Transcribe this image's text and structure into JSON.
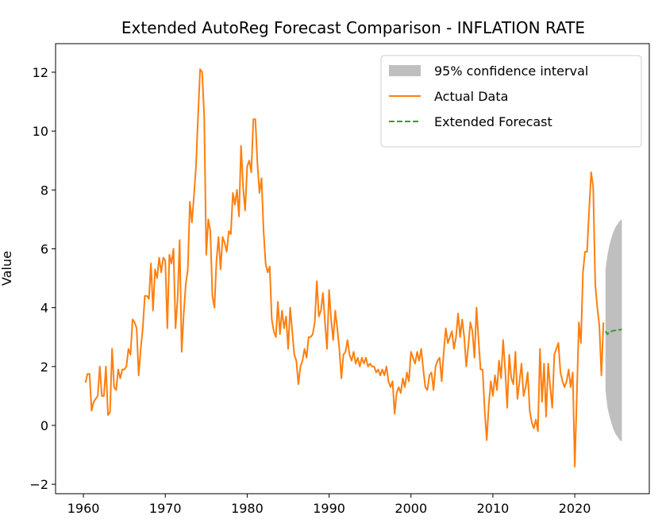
{
  "chart_data": {
    "type": "line",
    "title": "Extended AutoReg Forecast Comparison - INFLATION RATE",
    "ylabel": "Value",
    "xlim": [
      1956.6,
      2029.1
    ],
    "ylim": [
      -2.32,
      12.97
    ],
    "xticks": [
      1960,
      1970,
      1980,
      1990,
      2000,
      2010,
      2020
    ],
    "yticks": [
      {
        "value": -2,
        "label": "−2"
      },
      0,
      2,
      4,
      6,
      8,
      10,
      12
    ],
    "legend": "upper right",
    "confidence_interval": {
      "name": "95% confidence interval",
      "color": "#a9a9a9",
      "x": [
        2023.75,
        2024,
        2024.25,
        2024.5,
        2024.75,
        2025,
        2025.25,
        2025.5,
        2025.75
      ],
      "lower": [
        1.2,
        0.6,
        0.3,
        0.05,
        -0.15,
        -0.3,
        -0.4,
        -0.5,
        -0.55
      ],
      "upper": [
        5.3,
        5.8,
        6.15,
        6.4,
        6.6,
        6.75,
        6.85,
        6.95,
        7.0
      ]
    },
    "series": [
      {
        "name": "Actual Data",
        "color": "#ff7f0e",
        "linestyle": "solid",
        "x": [
          1960.25,
          1960.5,
          1960.75,
          1961,
          1961.25,
          1961.5,
          1961.75,
          1962,
          1962.25,
          1962.5,
          1962.75,
          1963,
          1963.25,
          1963.5,
          1963.75,
          1964,
          1964.25,
          1964.5,
          1964.75,
          1965,
          1965.25,
          1965.5,
          1965.75,
          1966,
          1966.25,
          1966.5,
          1966.75,
          1967,
          1967.25,
          1967.5,
          1967.75,
          1968,
          1968.25,
          1968.5,
          1968.75,
          1969,
          1969.25,
          1969.5,
          1969.75,
          1970,
          1970.25,
          1970.5,
          1970.75,
          1971,
          1971.25,
          1971.5,
          1971.75,
          1972,
          1972.25,
          1972.5,
          1972.75,
          1973,
          1973.25,
          1973.5,
          1973.75,
          1974,
          1974.25,
          1974.5,
          1974.75,
          1975,
          1975.25,
          1975.5,
          1975.75,
          1976,
          1976.25,
          1976.5,
          1976.75,
          1977,
          1977.25,
          1977.5,
          1977.75,
          1978,
          1978.25,
          1978.5,
          1978.75,
          1979,
          1979.25,
          1979.5,
          1979.75,
          1980,
          1980.25,
          1980.5,
          1980.75,
          1981,
          1981.25,
          1981.5,
          1981.75,
          1982,
          1982.25,
          1982.5,
          1982.75,
          1983,
          1983.25,
          1983.5,
          1983.75,
          1984,
          1984.25,
          1984.5,
          1984.75,
          1985,
          1985.25,
          1985.5,
          1985.75,
          1986,
          1986.25,
          1986.5,
          1986.75,
          1987,
          1987.25,
          1987.5,
          1987.75,
          1988,
          1988.25,
          1988.5,
          1988.75,
          1989,
          1989.25,
          1989.5,
          1989.75,
          1990,
          1990.25,
          1990.5,
          1990.75,
          1991,
          1991.25,
          1991.5,
          1991.75,
          1992,
          1992.25,
          1992.5,
          1992.75,
          1993,
          1993.25,
          1993.5,
          1993.75,
          1994,
          1994.25,
          1994.5,
          1994.75,
          1995,
          1995.25,
          1995.5,
          1995.75,
          1996,
          1996.25,
          1996.5,
          1996.75,
          1997,
          1997.25,
          1997.5,
          1997.75,
          1998,
          1998.25,
          1998.5,
          1998.75,
          1999,
          1999.25,
          1999.5,
          1999.75,
          2000,
          2000.25,
          2000.5,
          2000.75,
          2001,
          2001.25,
          2001.5,
          2001.75,
          2002,
          2002.25,
          2002.5,
          2002.75,
          2003,
          2003.25,
          2003.5,
          2003.75,
          2004,
          2004.25,
          2004.5,
          2004.75,
          2005,
          2005.25,
          2005.5,
          2005.75,
          2006,
          2006.25,
          2006.5,
          2006.75,
          2007,
          2007.25,
          2007.5,
          2007.75,
          2008,
          2008.25,
          2008.5,
          2008.75,
          2009,
          2009.25,
          2009.5,
          2009.75,
          2010,
          2010.25,
          2010.5,
          2010.75,
          2011,
          2011.25,
          2011.5,
          2011.75,
          2012,
          2012.25,
          2012.5,
          2012.75,
          2013,
          2013.25,
          2013.5,
          2013.75,
          2014,
          2014.25,
          2014.5,
          2014.75,
          2015,
          2015.25,
          2015.5,
          2015.75,
          2016,
          2016.25,
          2016.5,
          2016.75,
          2017,
          2017.25,
          2017.5,
          2017.75,
          2018,
          2018.25,
          2018.5,
          2018.75,
          2019,
          2019.25,
          2019.5,
          2019.75,
          2020,
          2020.25,
          2020.5,
          2020.75,
          2021,
          2021.25,
          2021.5,
          2021.75,
          2022,
          2022.25,
          2022.5,
          2022.75,
          2023,
          2023.25,
          2023.5
        ],
        "values": [
          1.45,
          1.75,
          1.75,
          0.5,
          0.8,
          0.9,
          1.0,
          2.0,
          1.0,
          1.0,
          2.0,
          0.35,
          0.45,
          2.6,
          1.3,
          1.2,
          1.9,
          1.6,
          1.9,
          1.9,
          2.0,
          2.6,
          2.4,
          3.6,
          3.5,
          3.3,
          1.7,
          2.6,
          3.3,
          4.4,
          4.4,
          4.3,
          5.5,
          3.9,
          5.3,
          5.0,
          5.7,
          5.2,
          5.7,
          5.6,
          3.3,
          5.8,
          5.5,
          6.0,
          3.3,
          4.3,
          6.3,
          2.5,
          3.8,
          4.8,
          5.3,
          7.6,
          6.9,
          7.8,
          8.8,
          10.5,
          12.1,
          12.0,
          10.5,
          5.8,
          7.0,
          6.6,
          4.4,
          4.0,
          5.6,
          6.4,
          5.3,
          6.4,
          6.2,
          5.9,
          6.6,
          6.5,
          7.9,
          7.5,
          8.0,
          7.1,
          9.5,
          8.1,
          7.3,
          8.8,
          9.0,
          8.6,
          10.4,
          10.4,
          8.9,
          7.9,
          8.4,
          6.6,
          5.5,
          5.2,
          5.4,
          3.6,
          3.2,
          3.0,
          4.2,
          3.1,
          3.9,
          3.3,
          3.7,
          2.6,
          4.0,
          3.2,
          2.4,
          2.2,
          1.4,
          2.0,
          2.2,
          2.6,
          2.3,
          3.0,
          3.0,
          3.1,
          3.5,
          4.9,
          3.7,
          3.9,
          4.5,
          3.5,
          2.6,
          4.6,
          3.6,
          2.9,
          3.9,
          3.3,
          2.6,
          1.6,
          2.4,
          2.5,
          2.9,
          2.4,
          2.2,
          2.5,
          2.1,
          2.3,
          2.0,
          2.3,
          2.1,
          2.3,
          2.0,
          2.1,
          2.0,
          2.0,
          1.8,
          1.9,
          1.7,
          1.9,
          1.7,
          2.0,
          1.5,
          1.3,
          1.5,
          0.4,
          1.1,
          1.3,
          1.1,
          1.6,
          1.3,
          1.8,
          1.5,
          2.5,
          2.3,
          2.1,
          2.5,
          2.2,
          2.6,
          1.9,
          1.3,
          1.2,
          1.7,
          1.8,
          1.2,
          2.0,
          2.2,
          2.3,
          1.5,
          2.5,
          3.3,
          2.8,
          3.0,
          3.2,
          2.6,
          3.0,
          3.8,
          3.0,
          3.6,
          3.0,
          2.0,
          2.7,
          3.5,
          3.2,
          2.3,
          4.0,
          2.9,
          1.9,
          1.9,
          0.5,
          -0.5,
          0.7,
          1.5,
          1.0,
          1.7,
          1.2,
          2.2,
          1.6,
          2.9,
          1.9,
          0.6,
          2.4,
          1.6,
          1.4,
          2.5,
          0.9,
          1.5,
          2.1,
          1.0,
          1.3,
          1.8,
          0.5,
          0.1,
          -0.1,
          0.2,
          -0.2,
          2.6,
          0.8,
          2.1,
          0.3,
          2.1,
          1.3,
          0.6,
          2.4,
          2.6,
          2.8,
          1.8,
          1.5,
          1.3,
          1.5,
          1.9,
          1.3,
          1.8,
          -1.4,
          1.0,
          3.5,
          2.8,
          5.2,
          5.9,
          5.9,
          7.3,
          8.6,
          8.1,
          4.8,
          4.0,
          3.4,
          1.7,
          3.5
        ]
      },
      {
        "name": "Extended Forecast",
        "color": "#2ca02c",
        "linestyle": "dashed",
        "x": [
          2023.75,
          2024,
          2024.25,
          2024.5,
          2024.75,
          2025,
          2025.25,
          2025.5,
          2025.75
        ],
        "values": [
          3.2,
          3.1,
          3.18,
          3.2,
          3.22,
          3.23,
          3.24,
          3.25,
          3.26
        ]
      }
    ]
  }
}
